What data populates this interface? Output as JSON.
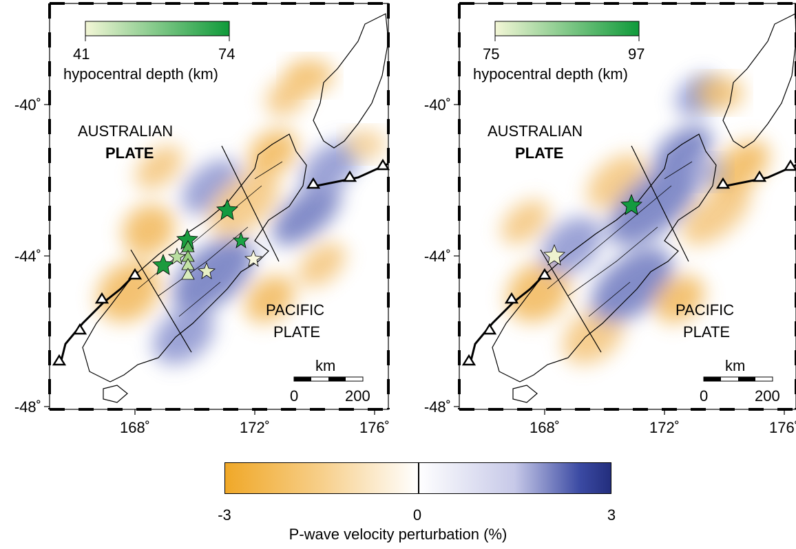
{
  "panels": [
    {
      "id": "left",
      "depth_scale": {
        "min_label": "41",
        "max_label": "74",
        "title": "hypocentral depth (km)",
        "color_min": "#f3f6d6",
        "color_max": "#0f9a3a"
      },
      "y_ticks": [
        "-40˚",
        "-44˚",
        "-48˚"
      ],
      "x_ticks": [
        "168˚",
        "172˚",
        "176˚"
      ],
      "labels": {
        "aus_line1": "AUSTRALIAN",
        "aus_line2": "PLATE",
        "pac_line1": "PACIFIC",
        "pac_line2": "PLATE"
      },
      "scale_bar": {
        "unit": "km",
        "zero": "0",
        "max": "200"
      }
    },
    {
      "id": "right",
      "depth_scale": {
        "min_label": "75",
        "max_label": "97",
        "title": "hypocentral depth (km)",
        "color_min": "#f3f6d6",
        "color_max": "#0f9a3a"
      },
      "y_ticks": [
        "-40˚",
        "-44˚",
        "-48˚"
      ],
      "x_ticks": [
        "168˚",
        "172˚",
        "176˚"
      ],
      "labels": {
        "aus_line1": "AUSTRALIAN",
        "aus_line2": "PLATE",
        "pac_line1": "PACIFIC",
        "pac_line2": "PLATE"
      },
      "scale_bar": {
        "unit": "km",
        "zero": "0",
        "max": "200"
      }
    }
  ],
  "colorbar": {
    "min_label": "-3",
    "mid_label": "0",
    "max_label": "3",
    "title": "P-wave velocity perturbation (%)",
    "color_negative": "#f0a828",
    "color_zero": "#ffffff",
    "color_positive": "#232e7d"
  },
  "colors": {
    "slow": "#f2b85a",
    "fast": "#6d78bf",
    "subduction": "#000000",
    "coast": "#000000"
  }
}
